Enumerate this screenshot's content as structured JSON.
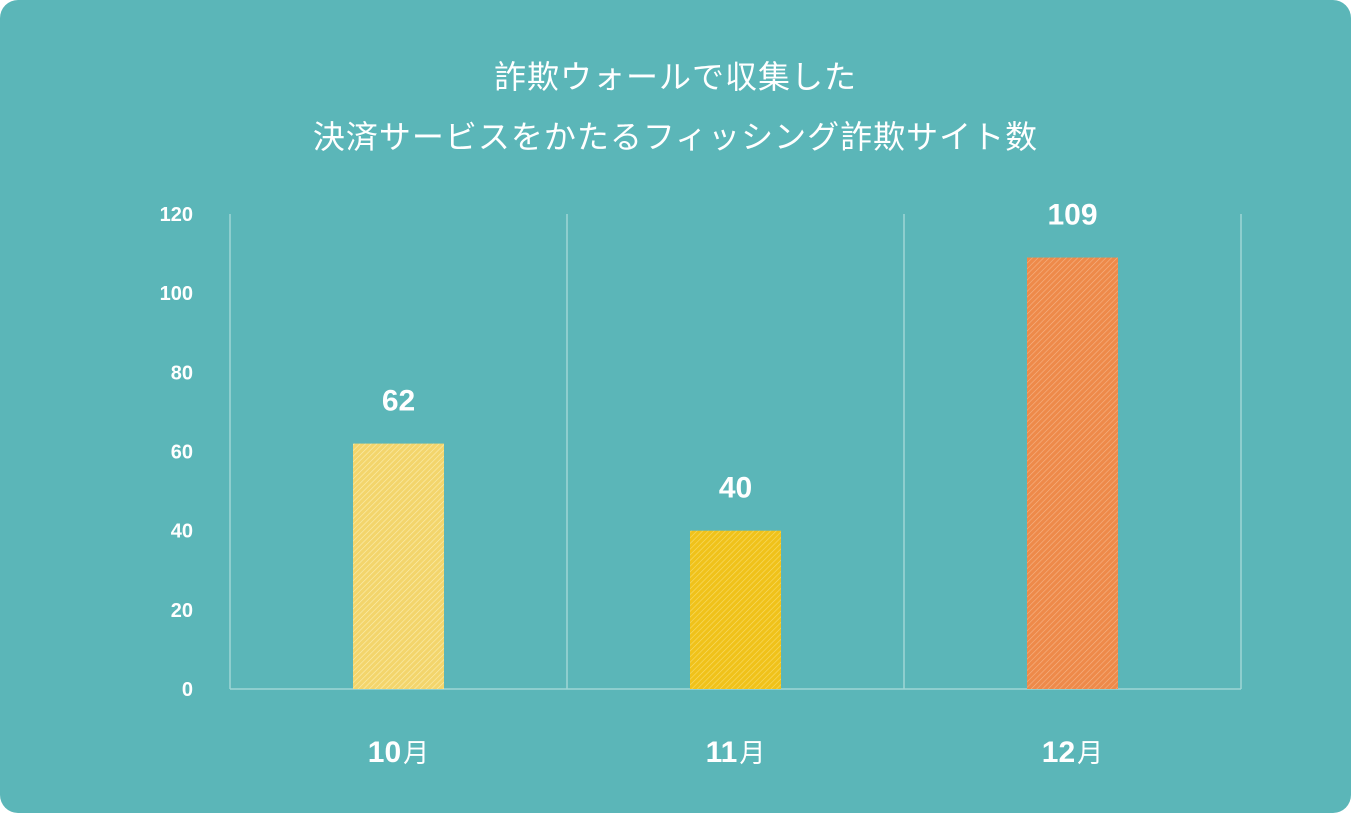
{
  "title_lines": [
    "詐欺ウォールで収集した",
    "決済サービスをかたるフィッシング詐欺サイト数"
  ],
  "chart_data": {
    "type": "bar",
    "categories": [
      "10月",
      "11月",
      "12月"
    ],
    "category_numbers": [
      "10",
      "11",
      "12"
    ],
    "category_unit": "月",
    "values": [
      62,
      40,
      109
    ],
    "data_labels": [
      "62",
      "40",
      "109"
    ],
    "ylim": [
      0,
      120
    ],
    "yticks": [
      0,
      20,
      40,
      60,
      80,
      100,
      120
    ],
    "grid": "vertical separators",
    "bar_colors": [
      "#f3d56c",
      "#f0c21a",
      "#ee8a4a"
    ],
    "background": "#5bb6b8"
  }
}
